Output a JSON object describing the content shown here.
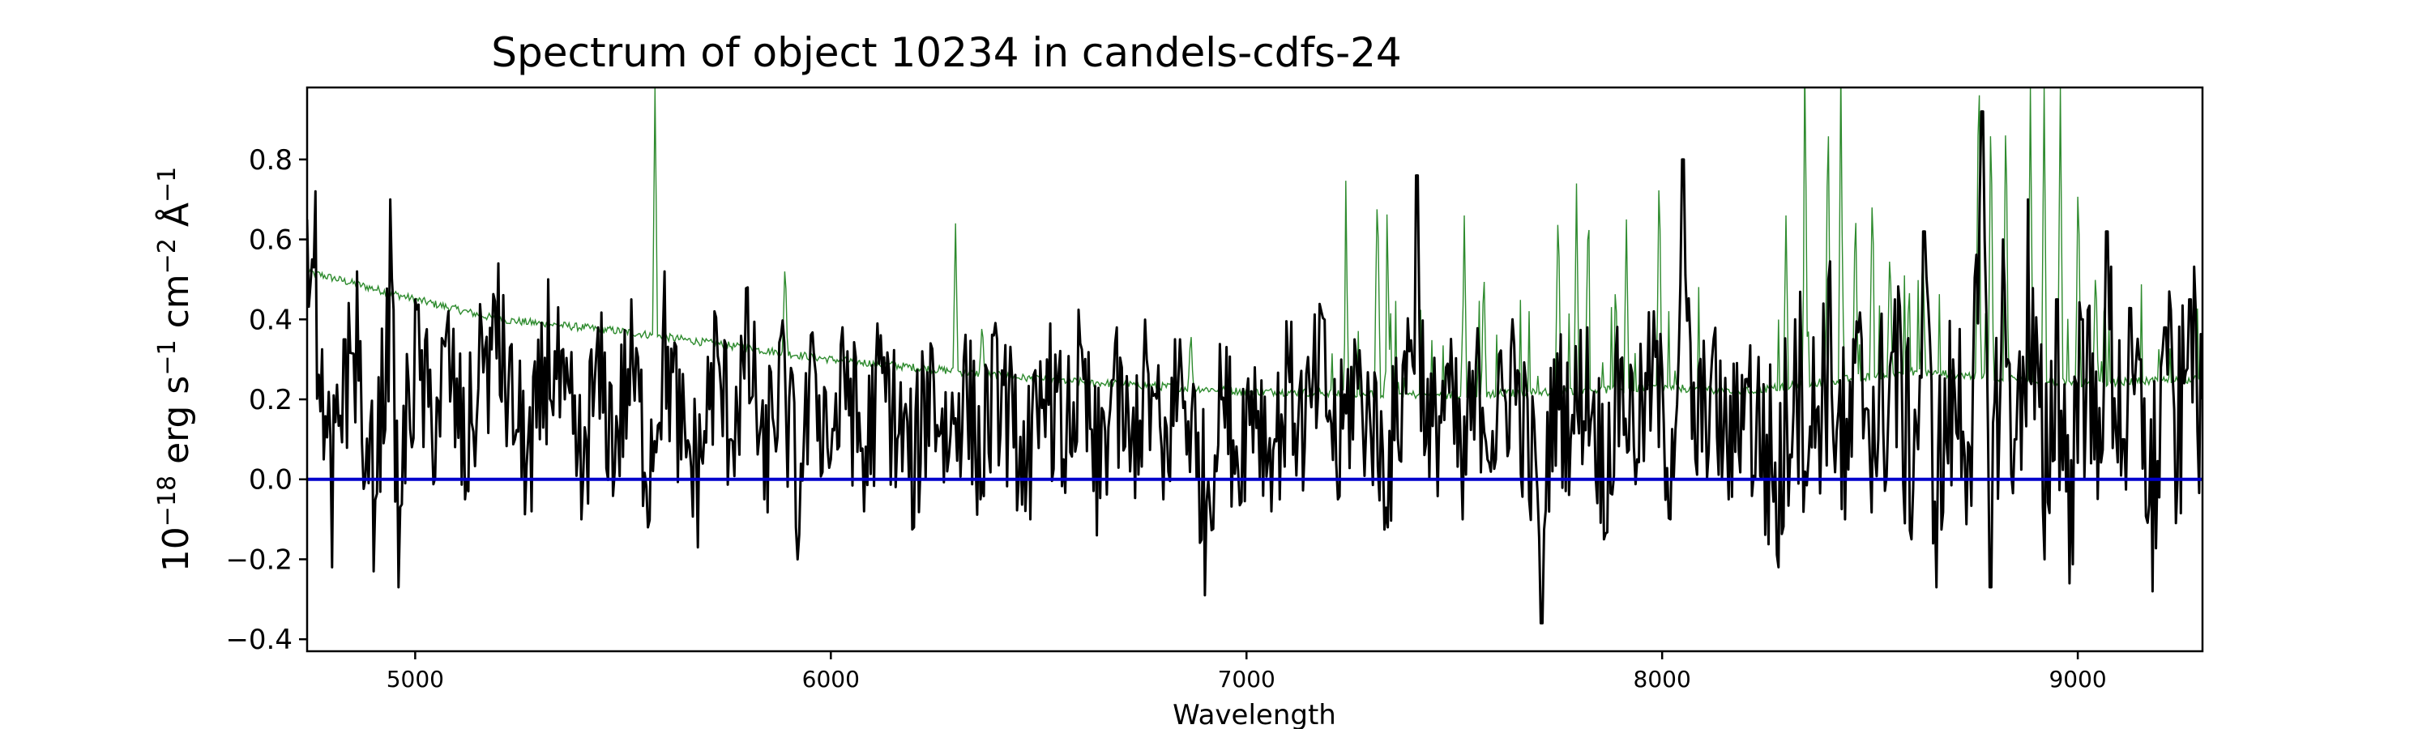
{
  "chart_data": {
    "type": "line",
    "title": "Spectrum of object 10234 in candels-cdfs-24",
    "xlabel": "Wavelength",
    "ylabel": {
      "base": "10",
      "exp": "−18",
      "parts": [
        {
          "text": " erg s",
          "sup": "−1"
        },
        {
          "text": " cm",
          "sup": "−2"
        },
        {
          "text": " Å",
          "sup": "−1"
        }
      ]
    },
    "xlim": [
      4740,
      9300
    ],
    "ylim": [
      -0.43,
      0.98
    ],
    "x_ticks": [
      5000,
      6000,
      7000,
      8000,
      9000
    ],
    "x_tick_labels": [
      "5000",
      "6000",
      "7000",
      "8000",
      "9000"
    ],
    "y_ticks": [
      -0.4,
      -0.2,
      0.0,
      0.2,
      0.4,
      0.6,
      0.8
    ],
    "y_tick_labels": [
      "−0.4",
      "−0.2",
      "0.0",
      "0.2",
      "0.4",
      "0.6",
      "0.8"
    ],
    "grid": false,
    "colors": {
      "flux": "#000000",
      "error": "#2e8b2e",
      "zero": "#0000cc"
    },
    "zero_line": 0.0,
    "error_continuum": [
      [
        4740,
        0.52
      ],
      [
        5000,
        0.45
      ],
      [
        5200,
        0.4
      ],
      [
        5500,
        0.37
      ],
      [
        6000,
        0.3
      ],
      [
        6500,
        0.25
      ],
      [
        7000,
        0.22
      ],
      [
        7500,
        0.21
      ],
      [
        8000,
        0.23
      ],
      [
        8200,
        0.22
      ],
      [
        8600,
        0.27
      ],
      [
        9000,
        0.24
      ],
      [
        9300,
        0.25
      ]
    ],
    "error_spikes": [
      [
        5577,
        0.98
      ],
      [
        5890,
        0.56
      ],
      [
        6300,
        0.64
      ],
      [
        6364,
        0.4
      ],
      [
        6866,
        0.38
      ],
      [
        7240,
        0.6
      ],
      [
        7316,
        0.68
      ],
      [
        7340,
        0.55
      ],
      [
        7524,
        0.66
      ],
      [
        7571,
        0.55
      ],
      [
        7750,
        0.72
      ],
      [
        7794,
        0.74
      ],
      [
        7821,
        0.6
      ],
      [
        7914,
        0.65
      ],
      [
        7993,
        0.82
      ],
      [
        8298,
        0.66
      ],
      [
        8344,
        0.98
      ],
      [
        8399,
        0.98
      ],
      [
        8430,
        0.98
      ],
      [
        8465,
        0.72
      ],
      [
        8505,
        0.68
      ],
      [
        8548,
        0.6
      ],
      [
        8627,
        0.62
      ],
      [
        8761,
        0.98
      ],
      [
        8791,
        0.98
      ],
      [
        8827,
        0.98
      ],
      [
        8886,
        0.98
      ],
      [
        8919,
        0.98
      ],
      [
        8958,
        0.98
      ],
      [
        9001,
        0.8
      ],
      [
        9043,
        0.55
      ]
    ],
    "flux_series": [
      [
        4740,
        0.65
      ],
      [
        4760,
        0.72
      ],
      [
        4780,
        0.05
      ],
      [
        4800,
        -0.22
      ],
      [
        4830,
        0.35
      ],
      [
        4860,
        0.52
      ],
      [
        4880,
        0.0
      ],
      [
        4900,
        -0.23
      ],
      [
        4940,
        0.7
      ],
      [
        4960,
        -0.27
      ],
      [
        5000,
        0.45
      ],
      [
        5040,
        0.12
      ],
      [
        5080,
        0.42
      ],
      [
        5120,
        -0.05
      ],
      [
        5160,
        0.38
      ],
      [
        5200,
        0.54
      ],
      [
        5240,
        0.1
      ],
      [
        5280,
        -0.08
      ],
      [
        5320,
        0.5
      ],
      [
        5360,
        0.2
      ],
      [
        5400,
        -0.1
      ],
      [
        5440,
        0.38
      ],
      [
        5480,
        0.02
      ],
      [
        5520,
        0.45
      ],
      [
        5560,
        -0.12
      ],
      [
        5600,
        0.52
      ],
      [
        5640,
        0.05
      ],
      [
        5680,
        -0.17
      ],
      [
        5720,
        0.42
      ],
      [
        5760,
        0.1
      ],
      [
        5800,
        0.48
      ],
      [
        5840,
        -0.05
      ],
      [
        5880,
        0.36
      ],
      [
        5920,
        -0.2
      ],
      [
        5960,
        0.3
      ],
      [
        6000,
        0.05
      ],
      [
        6040,
        0.32
      ],
      [
        6080,
        -0.08
      ],
      [
        6120,
        0.36
      ],
      [
        6160,
        0.1
      ],
      [
        6200,
        -0.12
      ],
      [
        6240,
        0.34
      ],
      [
        6280,
        0.02
      ],
      [
        6320,
        0.3
      ],
      [
        6360,
        -0.05
      ],
      [
        6400,
        0.35
      ],
      [
        6440,
        0.08
      ],
      [
        6480,
        -0.1
      ],
      [
        6520,
        0.3
      ],
      [
        6560,
        0.05
      ],
      [
        6600,
        0.34
      ],
      [
        6640,
        -0.14
      ],
      [
        6680,
        0.25
      ],
      [
        6720,
        0.02
      ],
      [
        6760,
        0.3
      ],
      [
        6800,
        -0.05
      ],
      [
        6840,
        0.35
      ],
      [
        6880,
        0.0
      ],
      [
        6900,
        -0.29
      ],
      [
        6940,
        0.2
      ],
      [
        6980,
        0.02
      ],
      [
        7020,
        0.28
      ],
      [
        7060,
        -0.08
      ],
      [
        7100,
        0.3
      ],
      [
        7140,
        0.08
      ],
      [
        7180,
        0.42
      ],
      [
        7220,
        -0.05
      ],
      [
        7260,
        0.35
      ],
      [
        7300,
        0.1
      ],
      [
        7340,
        -0.12
      ],
      [
        7380,
        0.32
      ],
      [
        7410,
        0.76
      ],
      [
        7440,
        0.0
      ],
      [
        7480,
        0.28
      ],
      [
        7520,
        -0.1
      ],
      [
        7560,
        0.3
      ],
      [
        7600,
        0.05
      ],
      [
        7640,
        0.4
      ],
      [
        7680,
        -0.05
      ],
      [
        7710,
        -0.36
      ],
      [
        7740,
        0.3
      ],
      [
        7780,
        0.1
      ],
      [
        7820,
        0.38
      ],
      [
        7860,
        -0.15
      ],
      [
        7900,
        0.3
      ],
      [
        7940,
        0.05
      ],
      [
        7980,
        0.42
      ],
      [
        8020,
        -0.1
      ],
      [
        8050,
        0.8
      ],
      [
        8080,
        0.05
      ],
      [
        8120,
        0.3
      ],
      [
        8160,
        -0.05
      ],
      [
        8200,
        0.25
      ],
      [
        8240,
        0.0
      ],
      [
        8280,
        -0.22
      ],
      [
        8320,
        0.4
      ],
      [
        8360,
        0.08
      ],
      [
        8400,
        0.5
      ],
      [
        8440,
        -0.1
      ],
      [
        8480,
        0.35
      ],
      [
        8520,
        0.1
      ],
      [
        8560,
        0.45
      ],
      [
        8600,
        -0.15
      ],
      [
        8630,
        0.62
      ],
      [
        8660,
        -0.27
      ],
      [
        8700,
        0.3
      ],
      [
        8740,
        0.08
      ],
      [
        8770,
        0.92
      ],
      [
        8790,
        -0.27
      ],
      [
        8820,
        0.6
      ],
      [
        8850,
        0.1
      ],
      [
        8880,
        0.7
      ],
      [
        8920,
        -0.2
      ],
      [
        8950,
        0.45
      ],
      [
        8980,
        -0.26
      ],
      [
        9010,
        0.4
      ],
      [
        9040,
        0.05
      ],
      [
        9070,
        0.62
      ],
      [
        9110,
        0.1
      ],
      [
        9150,
        0.3
      ],
      [
        9180,
        -0.28
      ],
      [
        9210,
        0.38
      ],
      [
        9240,
        0.0
      ],
      [
        9270,
        0.45
      ],
      [
        9300,
        0.2
      ]
    ]
  }
}
